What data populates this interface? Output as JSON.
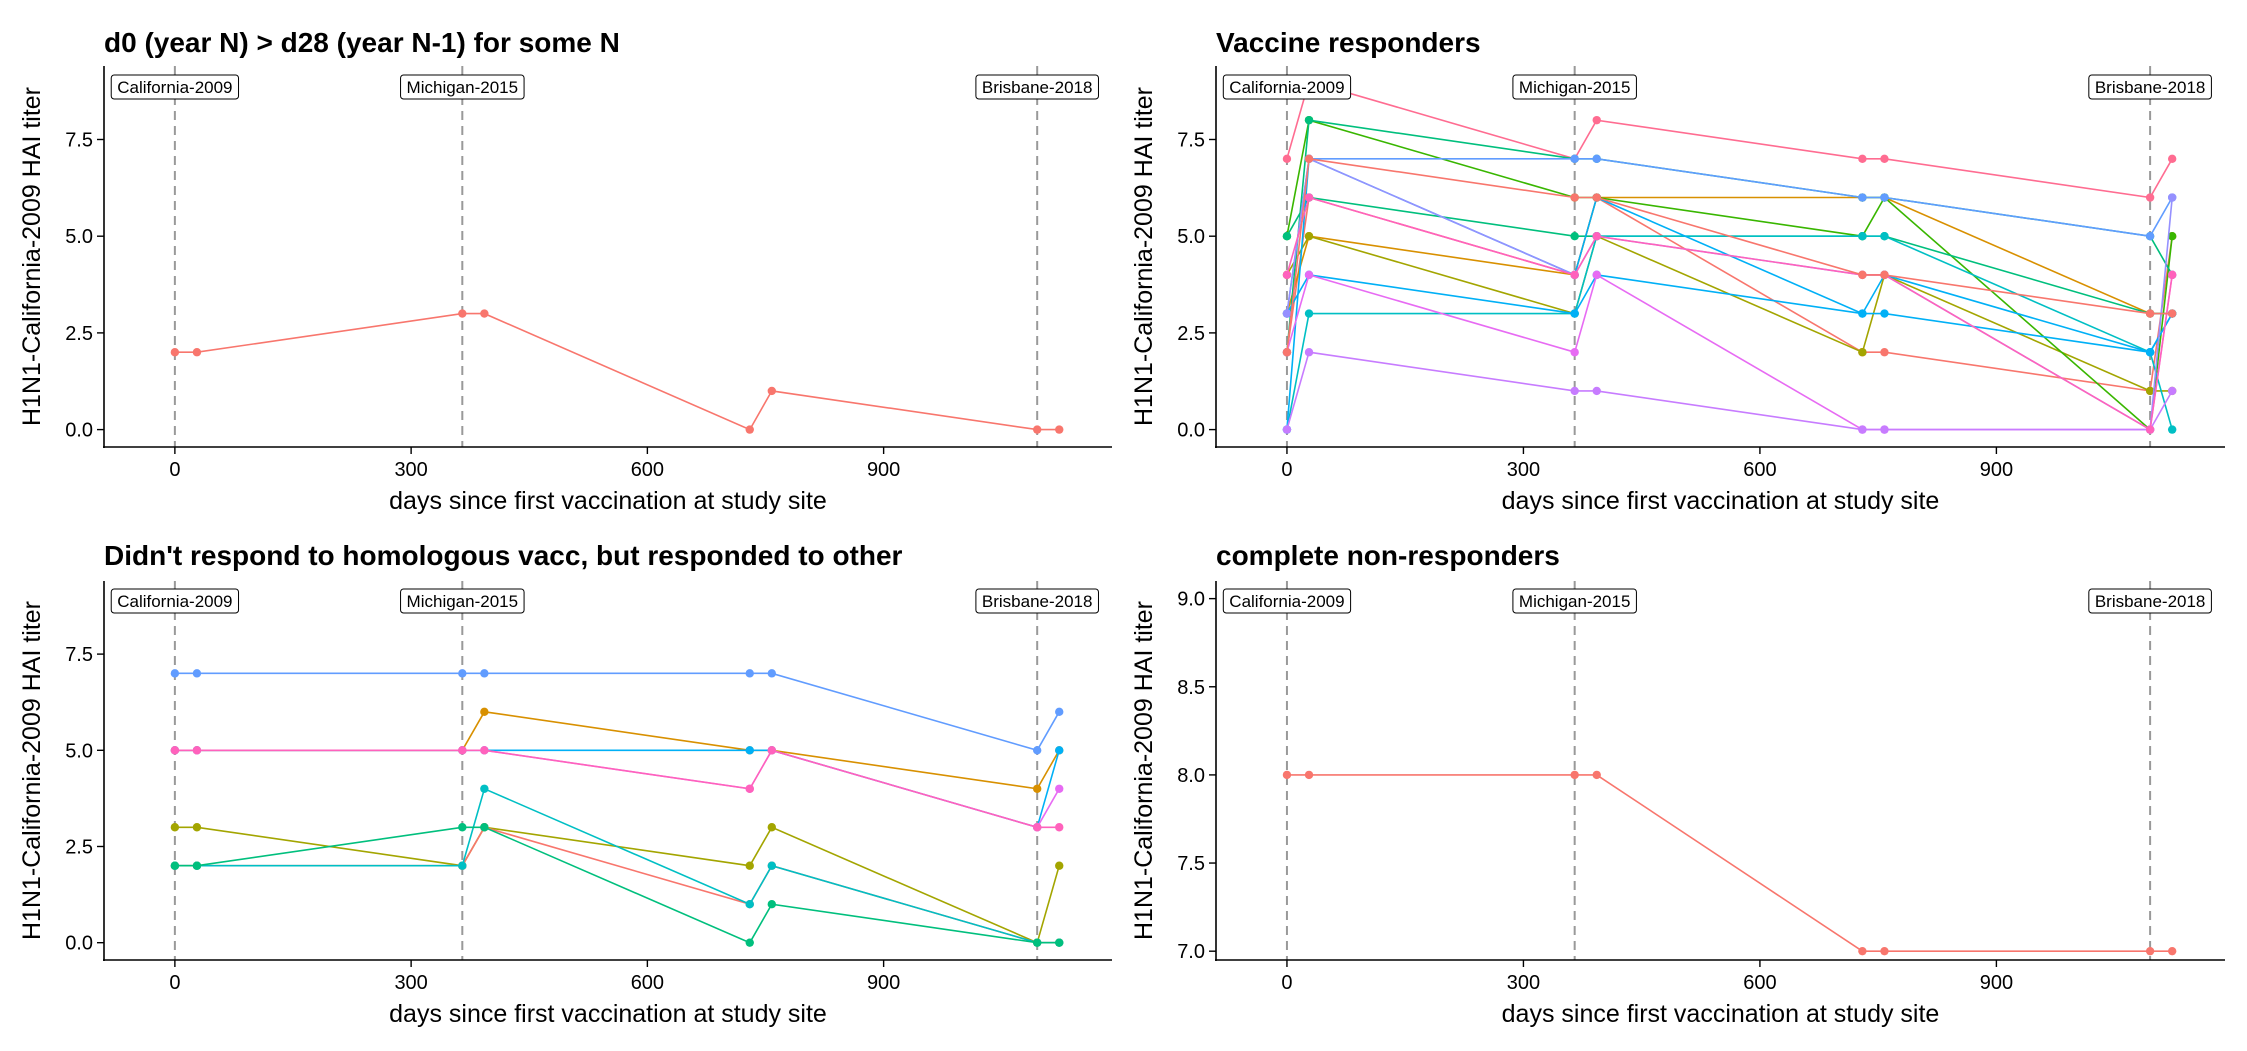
{
  "chart_data": [
    {
      "type": "line",
      "title": "d0 (year N) > d28 (year N-1) for some N",
      "xlabel": "days since first vaccination at study site",
      "ylabel": "H1N1-California-2009 HAI titer",
      "xlim": [
        -90,
        1190
      ],
      "ylim": [
        -0.45,
        9.4
      ],
      "xticks": [
        0,
        300,
        600,
        900
      ],
      "xtick_labels": [
        "0",
        "300",
        "600",
        "900"
      ],
      "yticks": [
        0,
        2.5,
        5,
        7.5
      ],
      "ytick_labels": [
        "0.0",
        "2.5",
        "5.0",
        "7.5"
      ],
      "grid": false,
      "legend": "none",
      "vlines": [
        {
          "x": 0,
          "label": "California-2009"
        },
        {
          "x": 365,
          "label": "Michigan-2015"
        },
        {
          "x": 1095,
          "label": "Brisbane-2018"
        }
      ],
      "series": [
        {
          "color": "#F8766D",
          "x": [
            0,
            28,
            365,
            393,
            730,
            758,
            1095,
            1123
          ],
          "y": [
            2,
            2,
            3,
            3,
            0,
            1,
            0,
            0
          ]
        }
      ]
    },
    {
      "type": "line",
      "title": "Vaccine responders",
      "xlabel": "days since first vaccination at study site",
      "ylabel": "H1N1-California-2009 HAI titer",
      "xlim": [
        -90,
        1190
      ],
      "ylim": [
        -0.45,
        9.4
      ],
      "xticks": [
        0,
        300,
        600,
        900
      ],
      "xtick_labels": [
        "0",
        "300",
        "600",
        "900"
      ],
      "yticks": [
        0,
        2.5,
        5,
        7.5
      ],
      "ytick_labels": [
        "0.0",
        "2.5",
        "5.0",
        "7.5"
      ],
      "grid": false,
      "legend": "none",
      "vlines": [
        {
          "x": 0,
          "label": "California-2009"
        },
        {
          "x": 365,
          "label": "Michigan-2015"
        },
        {
          "x": 1095,
          "label": "Brisbane-2018"
        }
      ],
      "series": [
        {
          "color": "#FF6C91",
          "x": [
            0,
            28,
            365,
            393,
            730,
            758,
            1095,
            1123
          ],
          "y": [
            7,
            9,
            7,
            8,
            7,
            7,
            6,
            7
          ]
        },
        {
          "color": "#F8766D",
          "x": [
            0,
            28,
            365,
            393,
            730,
            758,
            1095,
            1123
          ],
          "y": [
            2,
            6,
            4,
            6,
            2,
            2,
            1,
            5
          ]
        },
        {
          "color": "#D89000",
          "x": [
            0,
            28,
            365,
            393,
            730,
            758,
            1095,
            1123
          ],
          "y": [
            3,
            5,
            4,
            6,
            6,
            6,
            3,
            3
          ]
        },
        {
          "color": "#A3A500",
          "x": [
            0,
            28,
            365,
            393,
            730,
            758,
            1095,
            1123
          ],
          "y": [
            4,
            5,
            3,
            5,
            2,
            4,
            1,
            1
          ]
        },
        {
          "color": "#39B600",
          "x": [
            0,
            28,
            365,
            393,
            730,
            758,
            1095,
            1123
          ],
          "y": [
            5,
            8,
            6,
            6,
            5,
            6,
            0,
            5
          ]
        },
        {
          "color": "#00BF7D",
          "x": [
            0,
            28,
            365,
            393,
            730,
            758,
            1095,
            1123
          ],
          "y": [
            2,
            8,
            7,
            7,
            6,
            6,
            5,
            4
          ]
        },
        {
          "color": "#00BF7D",
          "x": [
            0,
            28,
            365,
            393,
            730,
            758,
            1095,
            1123
          ],
          "y": [
            5,
            6,
            5,
            5,
            5,
            5,
            3,
            3
          ]
        },
        {
          "color": "#00BFC4",
          "x": [
            0,
            28,
            365,
            393,
            730,
            758,
            1095,
            1123
          ],
          "y": [
            0,
            3,
            3,
            5,
            5,
            5,
            2,
            0
          ]
        },
        {
          "color": "#00B0F6",
          "x": [
            0,
            28,
            365,
            393,
            730,
            758,
            1095,
            1123
          ],
          "y": [
            3,
            4,
            3,
            4,
            3,
            3,
            2,
            3
          ]
        },
        {
          "color": "#00B0F6",
          "x": [
            0,
            28,
            365,
            393,
            730,
            758,
            1095,
            1123
          ],
          "y": [
            0,
            7,
            4,
            6,
            3,
            4,
            2,
            3
          ]
        },
        {
          "color": "#619CFF",
          "x": [
            0,
            28,
            365,
            393,
            730,
            758,
            1095,
            1123
          ],
          "y": [
            3,
            7,
            7,
            7,
            6,
            6,
            5,
            6
          ]
        },
        {
          "color": "#9590FF",
          "x": [
            0,
            28,
            365,
            393,
            730,
            758,
            1095,
            1123
          ],
          "y": [
            3,
            7,
            4,
            5,
            4,
            4,
            0,
            6
          ]
        },
        {
          "color": "#E76BF3",
          "x": [
            0,
            28,
            365,
            393,
            730,
            758,
            1095,
            1123
          ],
          "y": [
            2,
            4,
            2,
            4,
            0,
            0,
            0,
            4
          ]
        },
        {
          "color": "#C77CFF",
          "x": [
            0,
            28,
            365,
            393,
            730,
            758,
            1095,
            1123
          ],
          "y": [
            0,
            2,
            1,
            1,
            0,
            0,
            0,
            1
          ]
        },
        {
          "color": "#FF62BC",
          "x": [
            0,
            28,
            365,
            393,
            730,
            758,
            1095,
            1123
          ],
          "y": [
            4,
            6,
            4,
            5,
            4,
            4,
            0,
            4
          ]
        },
        {
          "color": "#F8766D",
          "x": [
            0,
            28,
            365,
            393,
            730,
            758,
            1095,
            1123
          ],
          "y": [
            2,
            7,
            6,
            6,
            4,
            4,
            3,
            3
          ]
        }
      ]
    },
    {
      "type": "line",
      "title": "Didn't respond to homologous vacc, but responded to other",
      "xlabel": "days since first vaccination at study site",
      "ylabel": "H1N1-California-2009 HAI titer",
      "xlim": [
        -90,
        1190
      ],
      "ylim": [
        -0.45,
        9.4
      ],
      "xticks": [
        0,
        300,
        600,
        900
      ],
      "xtick_labels": [
        "0",
        "300",
        "600",
        "900"
      ],
      "yticks": [
        0,
        2.5,
        5,
        7.5
      ],
      "ytick_labels": [
        "0.0",
        "2.5",
        "5.0",
        "7.5"
      ],
      "grid": false,
      "legend": "none",
      "vlines": [
        {
          "x": 0,
          "label": "California-2009"
        },
        {
          "x": 365,
          "label": "Michigan-2015"
        },
        {
          "x": 1095,
          "label": "Brisbane-2018"
        }
      ],
      "series": [
        {
          "color": "#619CFF",
          "x": [
            0,
            28,
            365,
            393,
            730,
            758,
            1095,
            1123
          ],
          "y": [
            7,
            7,
            7,
            7,
            7,
            7,
            5,
            6
          ]
        },
        {
          "color": "#D89000",
          "x": [
            0,
            28,
            365,
            393,
            730,
            758,
            1095,
            1123
          ],
          "y": [
            5,
            5,
            5,
            6,
            5,
            5,
            4,
            5
          ]
        },
        {
          "color": "#00B0F6",
          "x": [
            0,
            28,
            365,
            393,
            730,
            758,
            1095,
            1123
          ],
          "y": [
            5,
            5,
            5,
            5,
            5,
            5,
            3,
            5
          ]
        },
        {
          "color": "#E76BF3",
          "x": [
            0,
            28,
            365,
            393,
            730,
            758,
            1095,
            1123
          ],
          "y": [
            5,
            5,
            5,
            5,
            4,
            5,
            3,
            4
          ]
        },
        {
          "color": "#FF62BC",
          "x": [
            0,
            28,
            365,
            393,
            730,
            758,
            1095,
            1123
          ],
          "y": [
            5,
            5,
            5,
            5,
            4,
            5,
            3,
            3
          ]
        },
        {
          "color": "#A3A500",
          "x": [
            0,
            28,
            365,
            393,
            730,
            758,
            1095,
            1123
          ],
          "y": [
            3,
            3,
            2,
            3,
            2,
            3,
            0,
            2
          ]
        },
        {
          "color": "#F8766D",
          "x": [
            0,
            28,
            365,
            393,
            730,
            758,
            1095,
            1123
          ],
          "y": [
            2,
            2,
            2,
            3,
            1,
            2,
            0,
            0
          ]
        },
        {
          "color": "#00BFC4",
          "x": [
            0,
            28,
            365,
            393,
            730,
            758,
            1095,
            1123
          ],
          "y": [
            2,
            2,
            2,
            4,
            1,
            2,
            0,
            0
          ]
        },
        {
          "color": "#00BF7D",
          "x": [
            0,
            28,
            365,
            393,
            730,
            758,
            1095,
            1123
          ],
          "y": [
            2,
            2,
            3,
            3,
            0,
            1,
            0,
            0
          ]
        }
      ]
    },
    {
      "type": "line",
      "title": "complete non-responders",
      "xlabel": "days since first vaccination at study site",
      "ylabel": "H1N1-California-2009 HAI titer",
      "xlim": [
        -90,
        1190
      ],
      "ylim": [
        6.95,
        9.1
      ],
      "xticks": [
        0,
        300,
        600,
        900
      ],
      "xtick_labels": [
        "0",
        "300",
        "600",
        "900"
      ],
      "yticks": [
        7,
        7.5,
        8,
        8.5,
        9
      ],
      "ytick_labels": [
        "7.0",
        "7.5",
        "8.0",
        "8.5",
        "9.0"
      ],
      "grid": false,
      "legend": "none",
      "vlines": [
        {
          "x": 0,
          "label": "California-2009"
        },
        {
          "x": 365,
          "label": "Michigan-2015"
        },
        {
          "x": 1095,
          "label": "Brisbane-2018"
        }
      ],
      "series": [
        {
          "color": "#F8766D",
          "x": [
            0,
            28,
            365,
            393,
            730,
            758,
            1095,
            1123
          ],
          "y": [
            8,
            8,
            8,
            8,
            7,
            7,
            7,
            7
          ]
        }
      ]
    }
  ]
}
